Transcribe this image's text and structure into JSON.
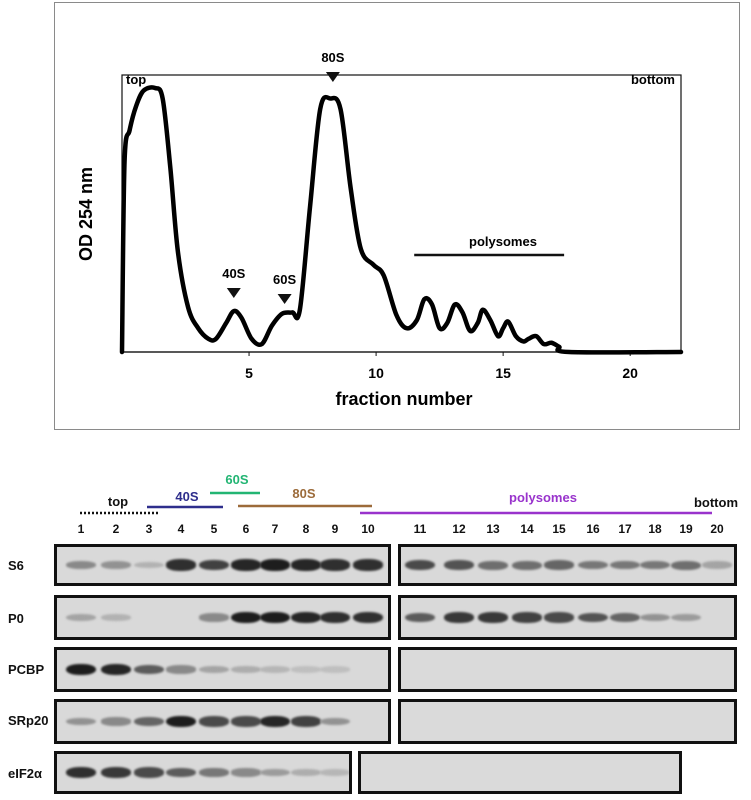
{
  "profile": {
    "ylabel": "OD 254 nm",
    "xlabel": "fraction number",
    "left_label": "top",
    "right_label": "bottom",
    "peaks": [
      {
        "label": "40S",
        "fraction": 4.4
      },
      {
        "label": "60S",
        "fraction": 6.4
      },
      {
        "label": "80S",
        "fraction": 8.3
      }
    ],
    "polysomes_label": "polysomes",
    "polysomes_range": [
      11.5,
      17.4
    ],
    "xticks": [
      "5",
      "10",
      "15",
      "20"
    ],
    "xlim": [
      0,
      22
    ],
    "curve": [
      [
        0,
        0
      ],
      [
        0.1,
        0.72
      ],
      [
        0.3,
        0.84
      ],
      [
        0.55,
        0.93
      ],
      [
        0.85,
        0.99
      ],
      [
        1.3,
        1.0
      ],
      [
        1.6,
        0.96
      ],
      [
        1.9,
        0.7
      ],
      [
        2.2,
        0.38
      ],
      [
        2.6,
        0.17
      ],
      [
        3.0,
        0.09
      ],
      [
        3.4,
        0.05
      ],
      [
        3.7,
        0.05
      ],
      [
        4.1,
        0.11
      ],
      [
        4.4,
        0.155
      ],
      [
        4.7,
        0.13
      ],
      [
        5.1,
        0.05
      ],
      [
        5.5,
        0.03
      ],
      [
        5.9,
        0.1
      ],
      [
        6.3,
        0.145
      ],
      [
        6.7,
        0.15
      ],
      [
        7.0,
        0.16
      ],
      [
        7.4,
        0.55
      ],
      [
        7.8,
        0.92
      ],
      [
        8.2,
        0.96
      ],
      [
        8.6,
        0.92
      ],
      [
        9.0,
        0.62
      ],
      [
        9.4,
        0.39
      ],
      [
        9.9,
        0.33
      ],
      [
        10.3,
        0.29
      ],
      [
        10.8,
        0.14
      ],
      [
        11.2,
        0.09
      ],
      [
        11.6,
        0.12
      ],
      [
        11.9,
        0.2
      ],
      [
        12.2,
        0.18
      ],
      [
        12.5,
        0.09
      ],
      [
        12.8,
        0.11
      ],
      [
        13.1,
        0.18
      ],
      [
        13.4,
        0.15
      ],
      [
        13.7,
        0.08
      ],
      [
        14.0,
        0.11
      ],
      [
        14.2,
        0.16
      ],
      [
        14.5,
        0.12
      ],
      [
        14.8,
        0.06
      ],
      [
        15.0,
        0.09
      ],
      [
        15.2,
        0.115
      ],
      [
        15.5,
        0.06
      ],
      [
        15.8,
        0.04
      ],
      [
        16.0,
        0.05
      ],
      [
        16.3,
        0.06
      ],
      [
        16.6,
        0.03
      ],
      [
        16.9,
        0.035
      ],
      [
        17.2,
        0.02
      ],
      [
        17.6,
        0.0
      ],
      [
        22,
        0.0
      ]
    ]
  },
  "blot": {
    "groups": [
      {
        "label": "top",
        "color": "#111111",
        "style": "dotted"
      },
      {
        "label": "40S",
        "color": "#2e2e8c",
        "style": "solid"
      },
      {
        "label": "60S",
        "color": "#22b573",
        "style": "solid"
      },
      {
        "label": "80S",
        "color": "#9c6b3a",
        "style": "solid"
      },
      {
        "label": "polysomes",
        "color": "#9933cc",
        "style": "solid"
      }
    ],
    "bottom_label": "bottom",
    "lanes": [
      "1",
      "2",
      "3",
      "4",
      "5",
      "6",
      "7",
      "8",
      "9",
      "10",
      "11",
      "12",
      "13",
      "14",
      "15",
      "16",
      "17",
      "18",
      "19",
      "20"
    ],
    "proteins": [
      {
        "name": "S6",
        "intensity": [
          0.35,
          0.3,
          0.12,
          0.85,
          0.75,
          0.9,
          0.95,
          0.9,
          0.85,
          0.85,
          0.7,
          0.65,
          0.5,
          0.5,
          0.55,
          0.45,
          0.45,
          0.45,
          0.5,
          0.2
        ]
      },
      {
        "name": "P0",
        "intensity": [
          0.2,
          0.12,
          0.0,
          0.0,
          0.35,
          0.95,
          0.95,
          0.9,
          0.85,
          0.85,
          0.6,
          0.8,
          0.8,
          0.75,
          0.7,
          0.65,
          0.55,
          0.3,
          0.25,
          0.0
        ]
      },
      {
        "name": "PCBP",
        "intensity": [
          0.95,
          0.9,
          0.6,
          0.35,
          0.2,
          0.15,
          0.1,
          0.05,
          0.05,
          0.0,
          0,
          0,
          0,
          0,
          0,
          0,
          0,
          0,
          0,
          0
        ]
      },
      {
        "name": "SRp20",
        "intensity": [
          0.3,
          0.35,
          0.55,
          0.95,
          0.7,
          0.7,
          0.9,
          0.75,
          0.3,
          0.0,
          0,
          0,
          0,
          0,
          0,
          0,
          0,
          0,
          0,
          0
        ]
      },
      {
        "name": "eIF2α",
        "intensity": [
          0.85,
          0.8,
          0.7,
          0.6,
          0.45,
          0.35,
          0.25,
          0.15,
          0.1,
          0.05,
          0,
          0,
          0,
          0,
          0,
          0,
          0,
          0,
          0,
          0
        ]
      }
    ]
  }
}
